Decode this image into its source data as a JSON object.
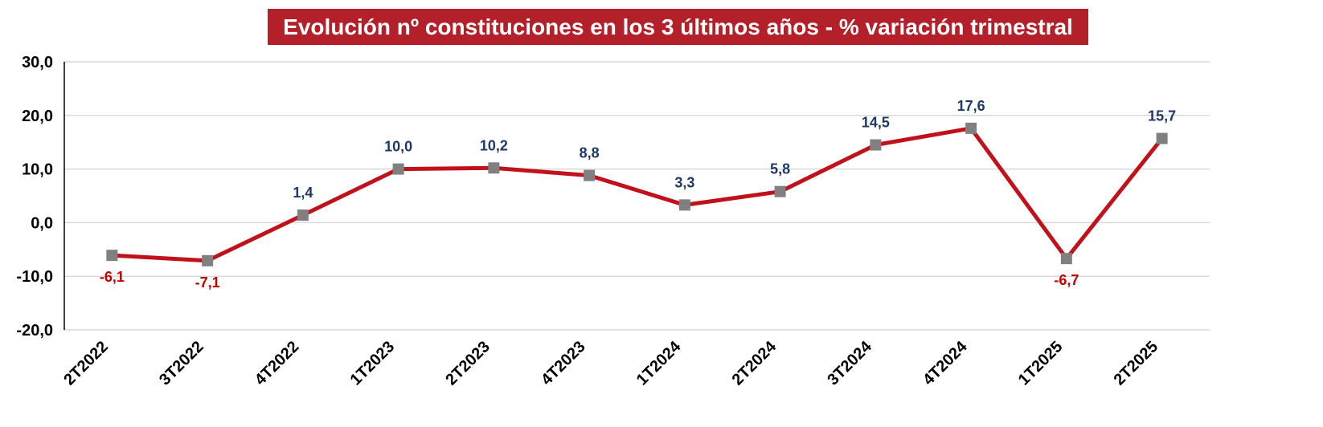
{
  "chart_data": {
    "type": "line",
    "title": "Evolución nº constituciones en los 3 últimos años - % variación trimestral",
    "xlabel": "",
    "ylabel": "",
    "categories": [
      "2T2022",
      "3T2022",
      "4T2022",
      "1T2023",
      "2T2023",
      "4T2023",
      "1T2024",
      "2T2024",
      "3T2024",
      "4T2024",
      "1T2025",
      "2T2025"
    ],
    "series": [
      {
        "values": [
          -6.1,
          -7.1,
          1.4,
          10.0,
          10.2,
          8.8,
          3.3,
          5.8,
          14.5,
          17.6,
          -6.7,
          15.7
        ]
      }
    ],
    "data_labels": [
      "-6,1",
      "-7,1",
      "1,4",
      "10,0",
      "10,2",
      "8,8",
      "3,3",
      "5,8",
      "14,5",
      "17,6",
      "-6,7",
      "15,7"
    ],
    "yticks": [
      30,
      20,
      10,
      0,
      -10,
      -20
    ],
    "ytick_labels": [
      "30,0",
      "20,0",
      "10,0",
      "0,0",
      "-10,0",
      "-20,0"
    ],
    "ylim": [
      -20,
      30
    ],
    "grid": true,
    "legend": "none",
    "colors": {
      "line": "#c0121b",
      "marker": "#808080",
      "positive_label": "#1f3864",
      "negative_label": "#c00000",
      "title_bg": "#b4202a",
      "title_text": "#ffffff",
      "grid": "#d9d9d9"
    }
  }
}
